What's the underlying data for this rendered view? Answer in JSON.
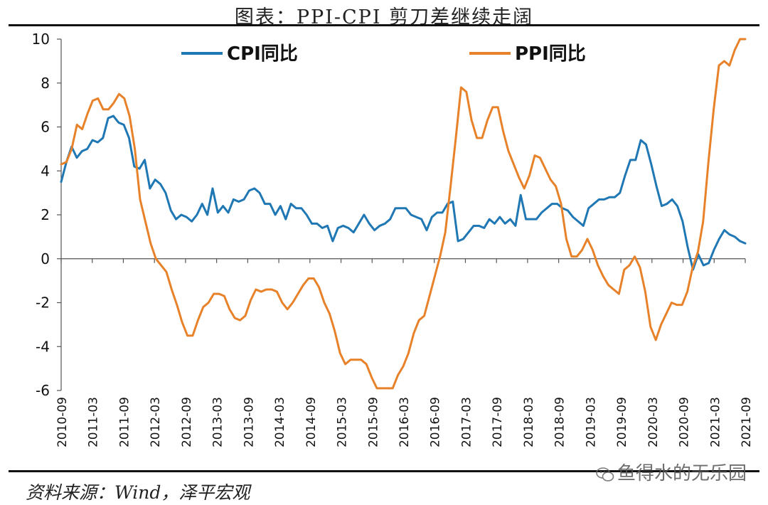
{
  "header": {
    "title": "图表：PPI-CPI 剪刀差继续走阔"
  },
  "footer": {
    "source": "资料来源：Wind，泽平宏观",
    "watermark": "鱼得水的无乐园"
  },
  "colors": {
    "cpi": "#1f77b4",
    "ppi": "#e8822a",
    "axis": "#555555",
    "text": "#111111"
  },
  "chart_data": {
    "type": "line",
    "title": "图表：PPI-CPI 剪刀差继续走阔",
    "xlabel": "",
    "ylabel": "",
    "ylim": [
      -6,
      10
    ],
    "yticks": [
      -6,
      -4,
      -2,
      0,
      2,
      4,
      6,
      8,
      10
    ],
    "x_range": [
      0,
      132
    ],
    "tick_labels": [
      "2010-09",
      "2011-03",
      "2011-09",
      "2012-03",
      "2012-09",
      "2013-03",
      "2013-09",
      "2014-03",
      "2014-09",
      "2015-03",
      "2015-09",
      "2016-03",
      "2016-09",
      "2017-03",
      "2017-09",
      "2018-03",
      "2018-09",
      "2019-03",
      "2019-09",
      "2020-03",
      "2020-09",
      "2021-03",
      "2021-09"
    ],
    "tick_positions": [
      0,
      6,
      12,
      18,
      24,
      30,
      36,
      42,
      48,
      54,
      60,
      66,
      72,
      78,
      84,
      90,
      96,
      102,
      108,
      114,
      120,
      126,
      132
    ],
    "legend": [
      {
        "name": "CPI同比",
        "placement": "top-left"
      },
      {
        "name": "PPI同比",
        "placement": "top-right"
      }
    ],
    "series": [
      {
        "name": "CPI同比",
        "color": "#1f77b4",
        "values": [
          3.5,
          4.4,
          5.1,
          4.6,
          4.9,
          5.0,
          5.4,
          5.3,
          5.5,
          6.4,
          6.5,
          6.2,
          6.1,
          5.5,
          4.2,
          4.1,
          4.5,
          3.2,
          3.6,
          3.4,
          3.0,
          2.2,
          1.8,
          2.0,
          1.9,
          1.7,
          2.0,
          2.5,
          2.0,
          3.2,
          2.1,
          2.4,
          2.1,
          2.7,
          2.6,
          2.7,
          3.1,
          3.2,
          3.0,
          2.5,
          2.5,
          2.0,
          2.4,
          1.8,
          2.5,
          2.3,
          2.3,
          2.0,
          1.6,
          1.6,
          1.4,
          1.5,
          0.8,
          1.4,
          1.5,
          1.4,
          1.2,
          1.6,
          2.0,
          1.6,
          1.3,
          1.5,
          1.6,
          1.8,
          2.3,
          2.3,
          2.3,
          2.0,
          1.9,
          1.8,
          1.3,
          1.9,
          2.1,
          2.1,
          2.5,
          2.6,
          0.8,
          0.9,
          1.2,
          1.5,
          1.5,
          1.4,
          1.8,
          1.6,
          1.9,
          1.6,
          1.8,
          1.5,
          2.9,
          1.8,
          1.8,
          1.8,
          2.1,
          2.3,
          2.5,
          2.5,
          2.3,
          2.2,
          1.9,
          1.7,
          1.5,
          2.3,
          2.5,
          2.7,
          2.7,
          2.8,
          2.8,
          3.0,
          3.8,
          4.5,
          4.5,
          5.4,
          5.2,
          4.3,
          3.3,
          2.4,
          2.5,
          2.7,
          2.4,
          1.7,
          0.5,
          -0.5,
          0.2,
          -0.3,
          -0.2,
          0.4,
          0.9,
          1.3,
          1.1,
          1.0,
          0.8,
          0.7
        ]
      },
      {
        "name": "PPI同比",
        "color": "#e8822a",
        "values": [
          4.3,
          4.4,
          5.0,
          6.1,
          5.9,
          6.6,
          7.2,
          7.3,
          6.8,
          6.8,
          7.1,
          7.5,
          7.3,
          6.5,
          5.0,
          2.7,
          1.7,
          0.7,
          0.0,
          -0.3,
          -0.6,
          -1.4,
          -2.1,
          -2.9,
          -3.5,
          -3.5,
          -2.8,
          -2.2,
          -2.0,
          -1.6,
          -1.6,
          -1.7,
          -2.3,
          -2.7,
          -2.8,
          -2.6,
          -1.9,
          -1.4,
          -1.5,
          -1.4,
          -1.4,
          -1.5,
          -2.0,
          -2.3,
          -2.0,
          -1.6,
          -1.2,
          -0.9,
          -0.9,
          -1.3,
          -2.0,
          -2.5,
          -3.3,
          -4.3,
          -4.8,
          -4.6,
          -4.6,
          -4.6,
          -4.8,
          -5.4,
          -5.9,
          -5.9,
          -5.9,
          -5.9,
          -5.3,
          -4.9,
          -4.3,
          -3.4,
          -2.8,
          -2.6,
          -1.7,
          -0.8,
          0.1,
          1.2,
          3.3,
          5.5,
          7.8,
          7.6,
          6.3,
          5.5,
          5.5,
          6.3,
          6.9,
          6.9,
          5.8,
          4.9,
          4.3,
          3.7,
          3.2,
          3.8,
          4.7,
          4.6,
          4.1,
          3.6,
          3.3,
          2.5,
          0.9,
          0.1,
          0.1,
          0.4,
          0.9,
          0.4,
          -0.3,
          -0.8,
          -1.2,
          -1.4,
          -1.6,
          -0.5,
          -0.3,
          0.1,
          -0.4,
          -1.5,
          -3.1,
          -3.7,
          -3.0,
          -2.5,
          -2.0,
          -2.1,
          -2.1,
          -1.5,
          -0.4,
          0.3,
          1.7,
          4.4,
          6.8,
          8.8,
          9.0,
          8.8,
          9.5,
          10.0,
          10.7
        ]
      }
    ]
  }
}
